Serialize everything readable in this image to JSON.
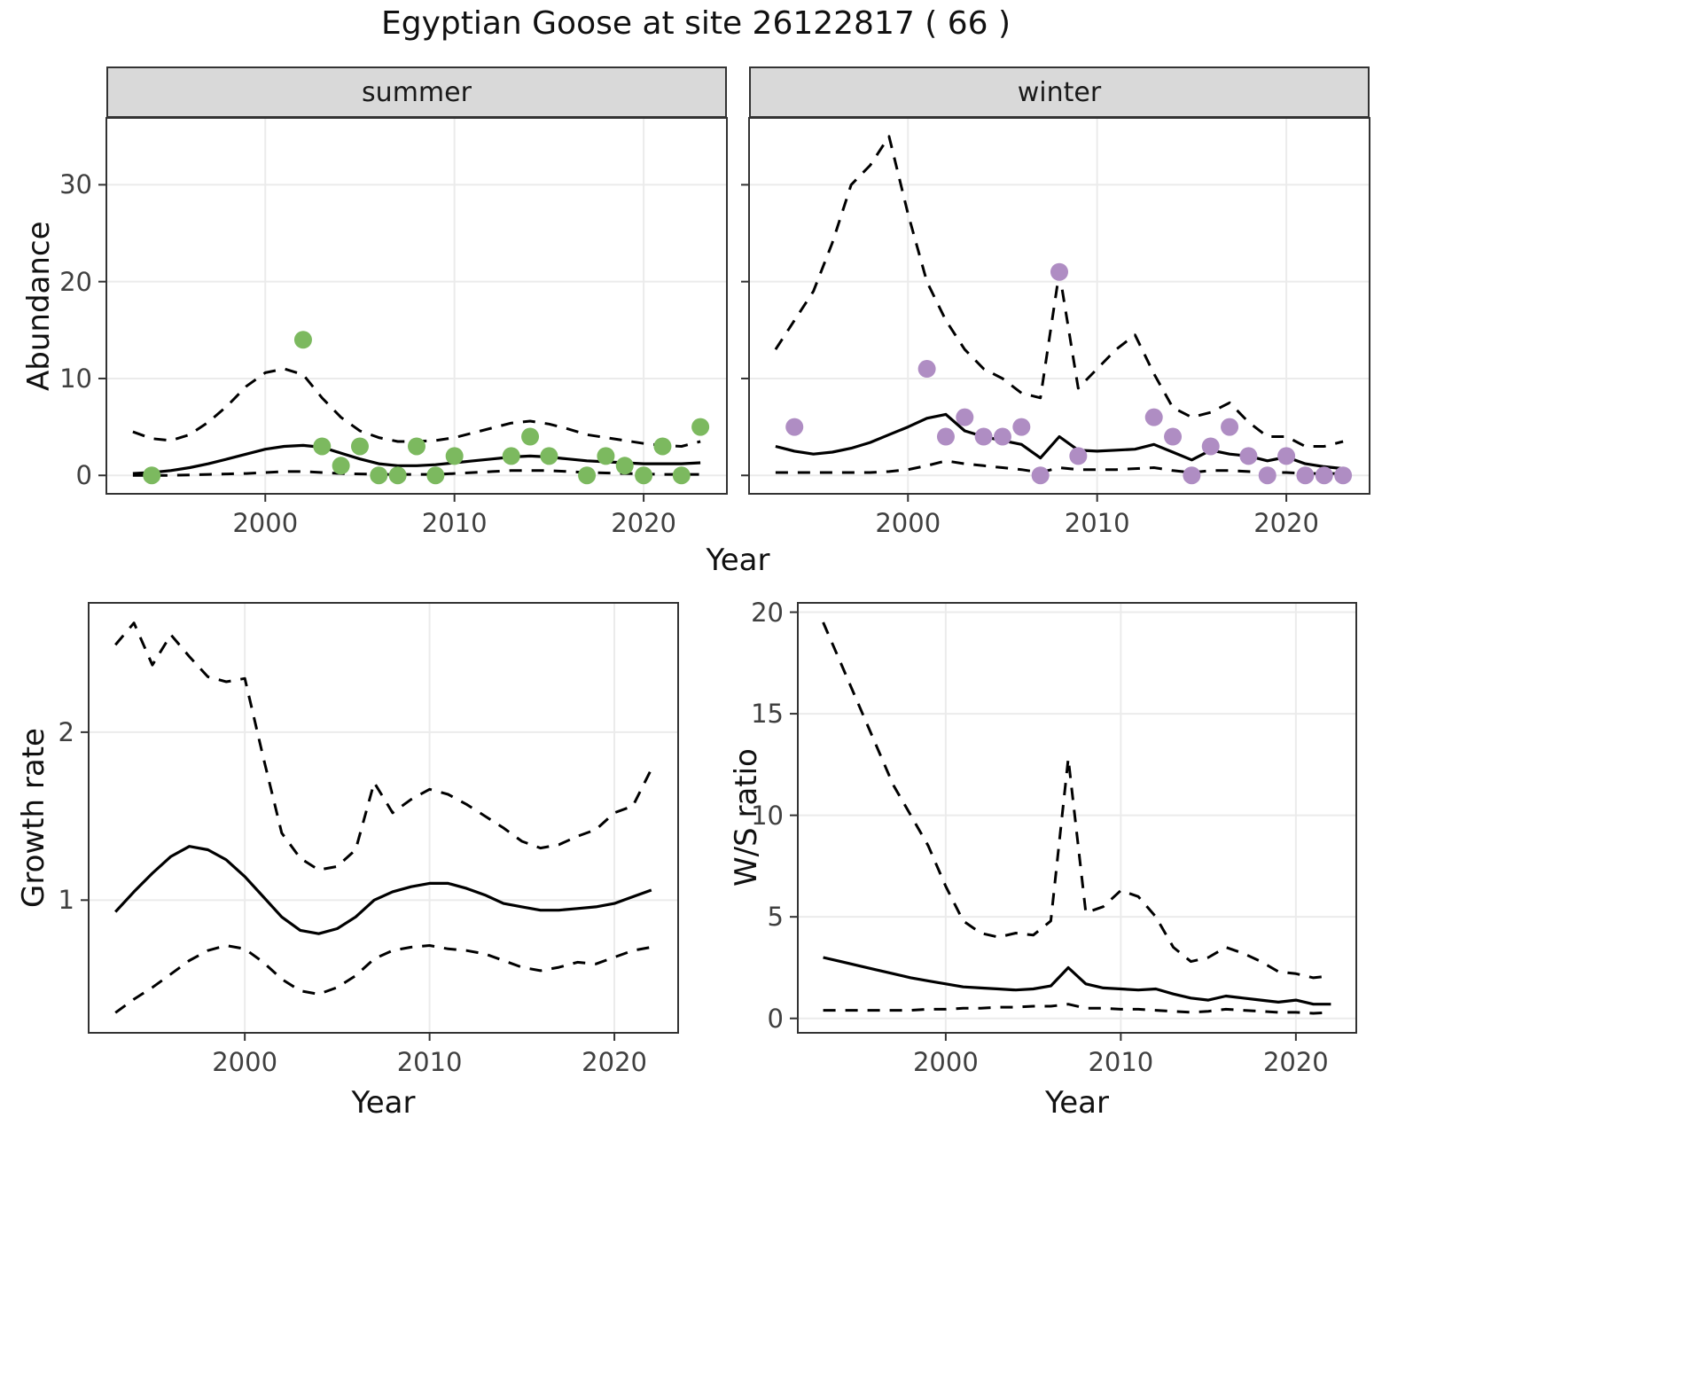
{
  "labels": {
    "title": "Egyptian Goose at site 26122817 ( 66 )",
    "abundance_ylabel": "Abundance",
    "top_xlabel": "Year",
    "growth_ylabel": "Growth rate",
    "growth_xlabel": "Year",
    "ws_ylabel": "W/S ratio",
    "ws_xlabel": "Year",
    "facet_summer": "summer",
    "facet_winter": "winter"
  },
  "colors": {
    "summer_points": "#7cb95f",
    "winter_points": "#af8dc3",
    "trend_line": "#000000",
    "ci_line": "#000000",
    "strip_background": "#d9d9d9",
    "panel_border": "#333333",
    "gridline": "#ebebeb"
  },
  "chart_data": [
    {
      "id": "abundance_summer",
      "type": "line+scatter",
      "facet": "summer",
      "title": "Egyptian Goose at site 26122817 ( 66 )",
      "xlabel": "Year",
      "ylabel": "Abundance",
      "xlim": [
        1991.6,
        2024.4
      ],
      "ylim": [
        -1.9,
        36.9
      ],
      "xticks": [
        2000,
        2010,
        2020
      ],
      "yticks": [
        0,
        10,
        20,
        30
      ],
      "x": [
        1993,
        1994,
        1995,
        1996,
        1997,
        1998,
        1999,
        2000,
        2001,
        2002,
        2003,
        2004,
        2005,
        2006,
        2007,
        2008,
        2009,
        2010,
        2011,
        2012,
        2013,
        2014,
        2015,
        2016,
        2017,
        2018,
        2019,
        2020,
        2021,
        2022,
        2023
      ],
      "series": [
        {
          "name": "trend",
          "style": "solid",
          "values": [
            0.2,
            0.3,
            0.5,
            0.8,
            1.2,
            1.7,
            2.2,
            2.7,
            3.0,
            3.1,
            2.9,
            2.3,
            1.7,
            1.2,
            1.0,
            1.0,
            1.1,
            1.3,
            1.5,
            1.7,
            1.9,
            2.0,
            1.9,
            1.7,
            1.5,
            1.4,
            1.3,
            1.2,
            1.2,
            1.2,
            1.3
          ]
        },
        {
          "name": "ci_upper",
          "style": "dashed",
          "values": [
            4.5,
            3.8,
            3.6,
            4.2,
            5.5,
            7.2,
            9.2,
            10.6,
            11.0,
            10.4,
            8.0,
            6.0,
            4.6,
            3.9,
            3.5,
            3.5,
            3.6,
            3.9,
            4.4,
            4.9,
            5.4,
            5.6,
            5.3,
            4.8,
            4.2,
            3.9,
            3.6,
            3.3,
            3.1,
            3.0,
            3.5
          ]
        },
        {
          "name": "ci_lower",
          "style": "dashed",
          "values": [
            0,
            0,
            0,
            0.05,
            0.1,
            0.15,
            0.2,
            0.3,
            0.4,
            0.4,
            0.3,
            0.2,
            0.15,
            0.1,
            0.1,
            0.1,
            0.1,
            0.2,
            0.3,
            0.4,
            0.5,
            0.5,
            0.5,
            0.4,
            0.3,
            0.25,
            0.2,
            0.15,
            0.1,
            0.1,
            0.1
          ]
        }
      ],
      "points": {
        "name": "observed_counts",
        "color_key": "summer_points",
        "x": [
          1994,
          2002,
          2003,
          2004,
          2005,
          2006,
          2007,
          2008,
          2009,
          2010,
          2013,
          2014,
          2015,
          2017,
          2018,
          2019,
          2020,
          2021,
          2022,
          2023
        ],
        "y": [
          0,
          14,
          3,
          1,
          3,
          0,
          0,
          3,
          0,
          2,
          2,
          4,
          2,
          0,
          2,
          1,
          0,
          3,
          0,
          5
        ]
      }
    },
    {
      "id": "abundance_winter",
      "type": "line+scatter",
      "facet": "winter",
      "title": "Egyptian Goose at site 26122817 ( 66 )",
      "xlabel": "Year",
      "ylabel": "Abundance",
      "xlim": [
        1991.6,
        2024.4
      ],
      "ylim": [
        -1.9,
        36.9
      ],
      "xticks": [
        2000,
        2010,
        2020
      ],
      "yticks": [
        0,
        10,
        20,
        30
      ],
      "x": [
        1993,
        1994,
        1995,
        1996,
        1997,
        1998,
        1999,
        2000,
        2001,
        2002,
        2003,
        2004,
        2005,
        2006,
        2007,
        2008,
        2009,
        2010,
        2011,
        2012,
        2013,
        2014,
        2015,
        2016,
        2017,
        2018,
        2019,
        2020,
        2021,
        2022,
        2023
      ],
      "series": [
        {
          "name": "trend",
          "style": "solid",
          "values": [
            3.0,
            2.5,
            2.2,
            2.4,
            2.8,
            3.4,
            4.2,
            5.0,
            5.9,
            6.3,
            4.6,
            4.0,
            3.6,
            3.2,
            1.8,
            4.0,
            2.6,
            2.5,
            2.6,
            2.7,
            3.2,
            2.4,
            1.6,
            2.6,
            2.2,
            2.0,
            1.5,
            1.9,
            1.2,
            0.9,
            0.7
          ]
        },
        {
          "name": "ci_upper",
          "style": "dashed",
          "values": [
            13,
            16,
            19,
            24,
            30,
            32,
            35,
            27,
            20,
            16,
            13,
            11,
            10,
            8.5,
            8,
            21,
            9,
            11,
            13,
            14.5,
            10.5,
            7,
            6,
            6.5,
            7.5,
            5.5,
            4,
            4,
            3,
            3,
            3.5
          ]
        },
        {
          "name": "ci_lower",
          "style": "dashed",
          "values": [
            0.3,
            0.3,
            0.3,
            0.3,
            0.3,
            0.3,
            0.4,
            0.6,
            1.0,
            1.5,
            1.2,
            1.0,
            0.8,
            0.6,
            0.3,
            0.8,
            0.6,
            0.6,
            0.6,
            0.7,
            0.8,
            0.5,
            0.3,
            0.5,
            0.5,
            0.4,
            0.3,
            0.3,
            0.2,
            0.2,
            0.2
          ]
        }
      ],
      "points": {
        "name": "observed_counts",
        "color_key": "winter_points",
        "x": [
          1994,
          2001,
          2002,
          2003,
          2004,
          2005,
          2006,
          2007,
          2008,
          2009,
          2013,
          2014,
          2015,
          2016,
          2017,
          2018,
          2019,
          2020,
          2021,
          2022,
          2023
        ],
        "y": [
          5,
          11,
          4,
          6,
          4,
          4,
          5,
          0,
          21,
          2,
          6,
          4,
          0,
          3,
          5,
          2,
          0,
          2,
          0,
          0,
          0
        ]
      }
    },
    {
      "id": "growth_rate",
      "type": "line",
      "facet": "",
      "title": "",
      "xlabel": "Year",
      "ylabel": "Growth rate",
      "xlim": [
        1991.55,
        2023.45
      ],
      "ylim": [
        0.21,
        2.77
      ],
      "xticks": [
        2000,
        2010,
        2020
      ],
      "yticks": [
        1,
        2
      ],
      "x": [
        1993,
        1994,
        1995,
        1996,
        1997,
        1998,
        1999,
        2000,
        2001,
        2002,
        2003,
        2004,
        2005,
        2006,
        2007,
        2008,
        2009,
        2010,
        2011,
        2012,
        2013,
        2014,
        2015,
        2016,
        2017,
        2018,
        2019,
        2020,
        2021,
        2022
      ],
      "series": [
        {
          "name": "trend",
          "style": "solid",
          "values": [
            0.93,
            1.05,
            1.16,
            1.26,
            1.32,
            1.3,
            1.24,
            1.14,
            1.02,
            0.9,
            0.82,
            0.8,
            0.83,
            0.9,
            1.0,
            1.05,
            1.08,
            1.1,
            1.1,
            1.07,
            1.03,
            0.98,
            0.96,
            0.94,
            0.94,
            0.95,
            0.96,
            0.98,
            1.02,
            1.06
          ]
        },
        {
          "name": "ci_upper",
          "style": "dashed",
          "values": [
            2.52,
            2.65,
            2.4,
            2.58,
            2.45,
            2.33,
            2.3,
            2.32,
            1.85,
            1.4,
            1.25,
            1.18,
            1.2,
            1.3,
            1.7,
            1.52,
            1.6,
            1.66,
            1.63,
            1.57,
            1.5,
            1.43,
            1.35,
            1.31,
            1.33,
            1.38,
            1.42,
            1.52,
            1.56,
            1.78
          ]
        },
        {
          "name": "ci_lower",
          "style": "dashed",
          "values": [
            0.33,
            0.41,
            0.48,
            0.56,
            0.64,
            0.7,
            0.73,
            0.71,
            0.63,
            0.53,
            0.46,
            0.44,
            0.48,
            0.55,
            0.65,
            0.7,
            0.72,
            0.73,
            0.71,
            0.7,
            0.68,
            0.64,
            0.6,
            0.58,
            0.6,
            0.63,
            0.62,
            0.66,
            0.7,
            0.72
          ]
        }
      ]
    },
    {
      "id": "ws_ratio",
      "type": "line",
      "facet": "",
      "title": "",
      "xlabel": "Year",
      "ylabel": "W/S ratio",
      "xlim": [
        1991.55,
        2023.45
      ],
      "ylim": [
        -0.71,
        20.46
      ],
      "xticks": [
        2000,
        2010,
        2020
      ],
      "yticks": [
        0,
        5,
        10,
        15,
        20
      ],
      "x": [
        1993,
        1994,
        1995,
        1996,
        1997,
        1998,
        1999,
        2000,
        2001,
        2002,
        2003,
        2004,
        2005,
        2006,
        2007,
        2008,
        2009,
        2010,
        2011,
        2012,
        2013,
        2014,
        2015,
        2016,
        2017,
        2018,
        2019,
        2020,
        2021,
        2022
      ],
      "series": [
        {
          "name": "trend",
          "style": "solid",
          "values": [
            3.0,
            2.8,
            2.6,
            2.4,
            2.2,
            2.0,
            1.85,
            1.7,
            1.55,
            1.5,
            1.45,
            1.4,
            1.45,
            1.6,
            2.5,
            1.7,
            1.5,
            1.45,
            1.4,
            1.45,
            1.2,
            1.0,
            0.9,
            1.1,
            1.0,
            0.9,
            0.8,
            0.9,
            0.7,
            0.7
          ]
        },
        {
          "name": "ci_upper",
          "style": "dashed",
          "values": [
            19.5,
            17.5,
            15.5,
            13.5,
            11.5,
            10.0,
            8.5,
            6.5,
            4.8,
            4.2,
            4.0,
            4.2,
            4.1,
            4.8,
            12.8,
            5.2,
            5.5,
            6.3,
            6.0,
            5.0,
            3.5,
            2.8,
            3.0,
            3.5,
            3.2,
            2.8,
            2.3,
            2.2,
            2.0,
            2.1
          ]
        },
        {
          "name": "ci_lower",
          "style": "dashed",
          "values": [
            0.4,
            0.4,
            0.4,
            0.4,
            0.4,
            0.4,
            0.45,
            0.45,
            0.5,
            0.5,
            0.55,
            0.55,
            0.6,
            0.6,
            0.7,
            0.5,
            0.5,
            0.45,
            0.45,
            0.4,
            0.35,
            0.3,
            0.35,
            0.45,
            0.4,
            0.35,
            0.3,
            0.3,
            0.25,
            0.3
          ]
        }
      ]
    }
  ]
}
